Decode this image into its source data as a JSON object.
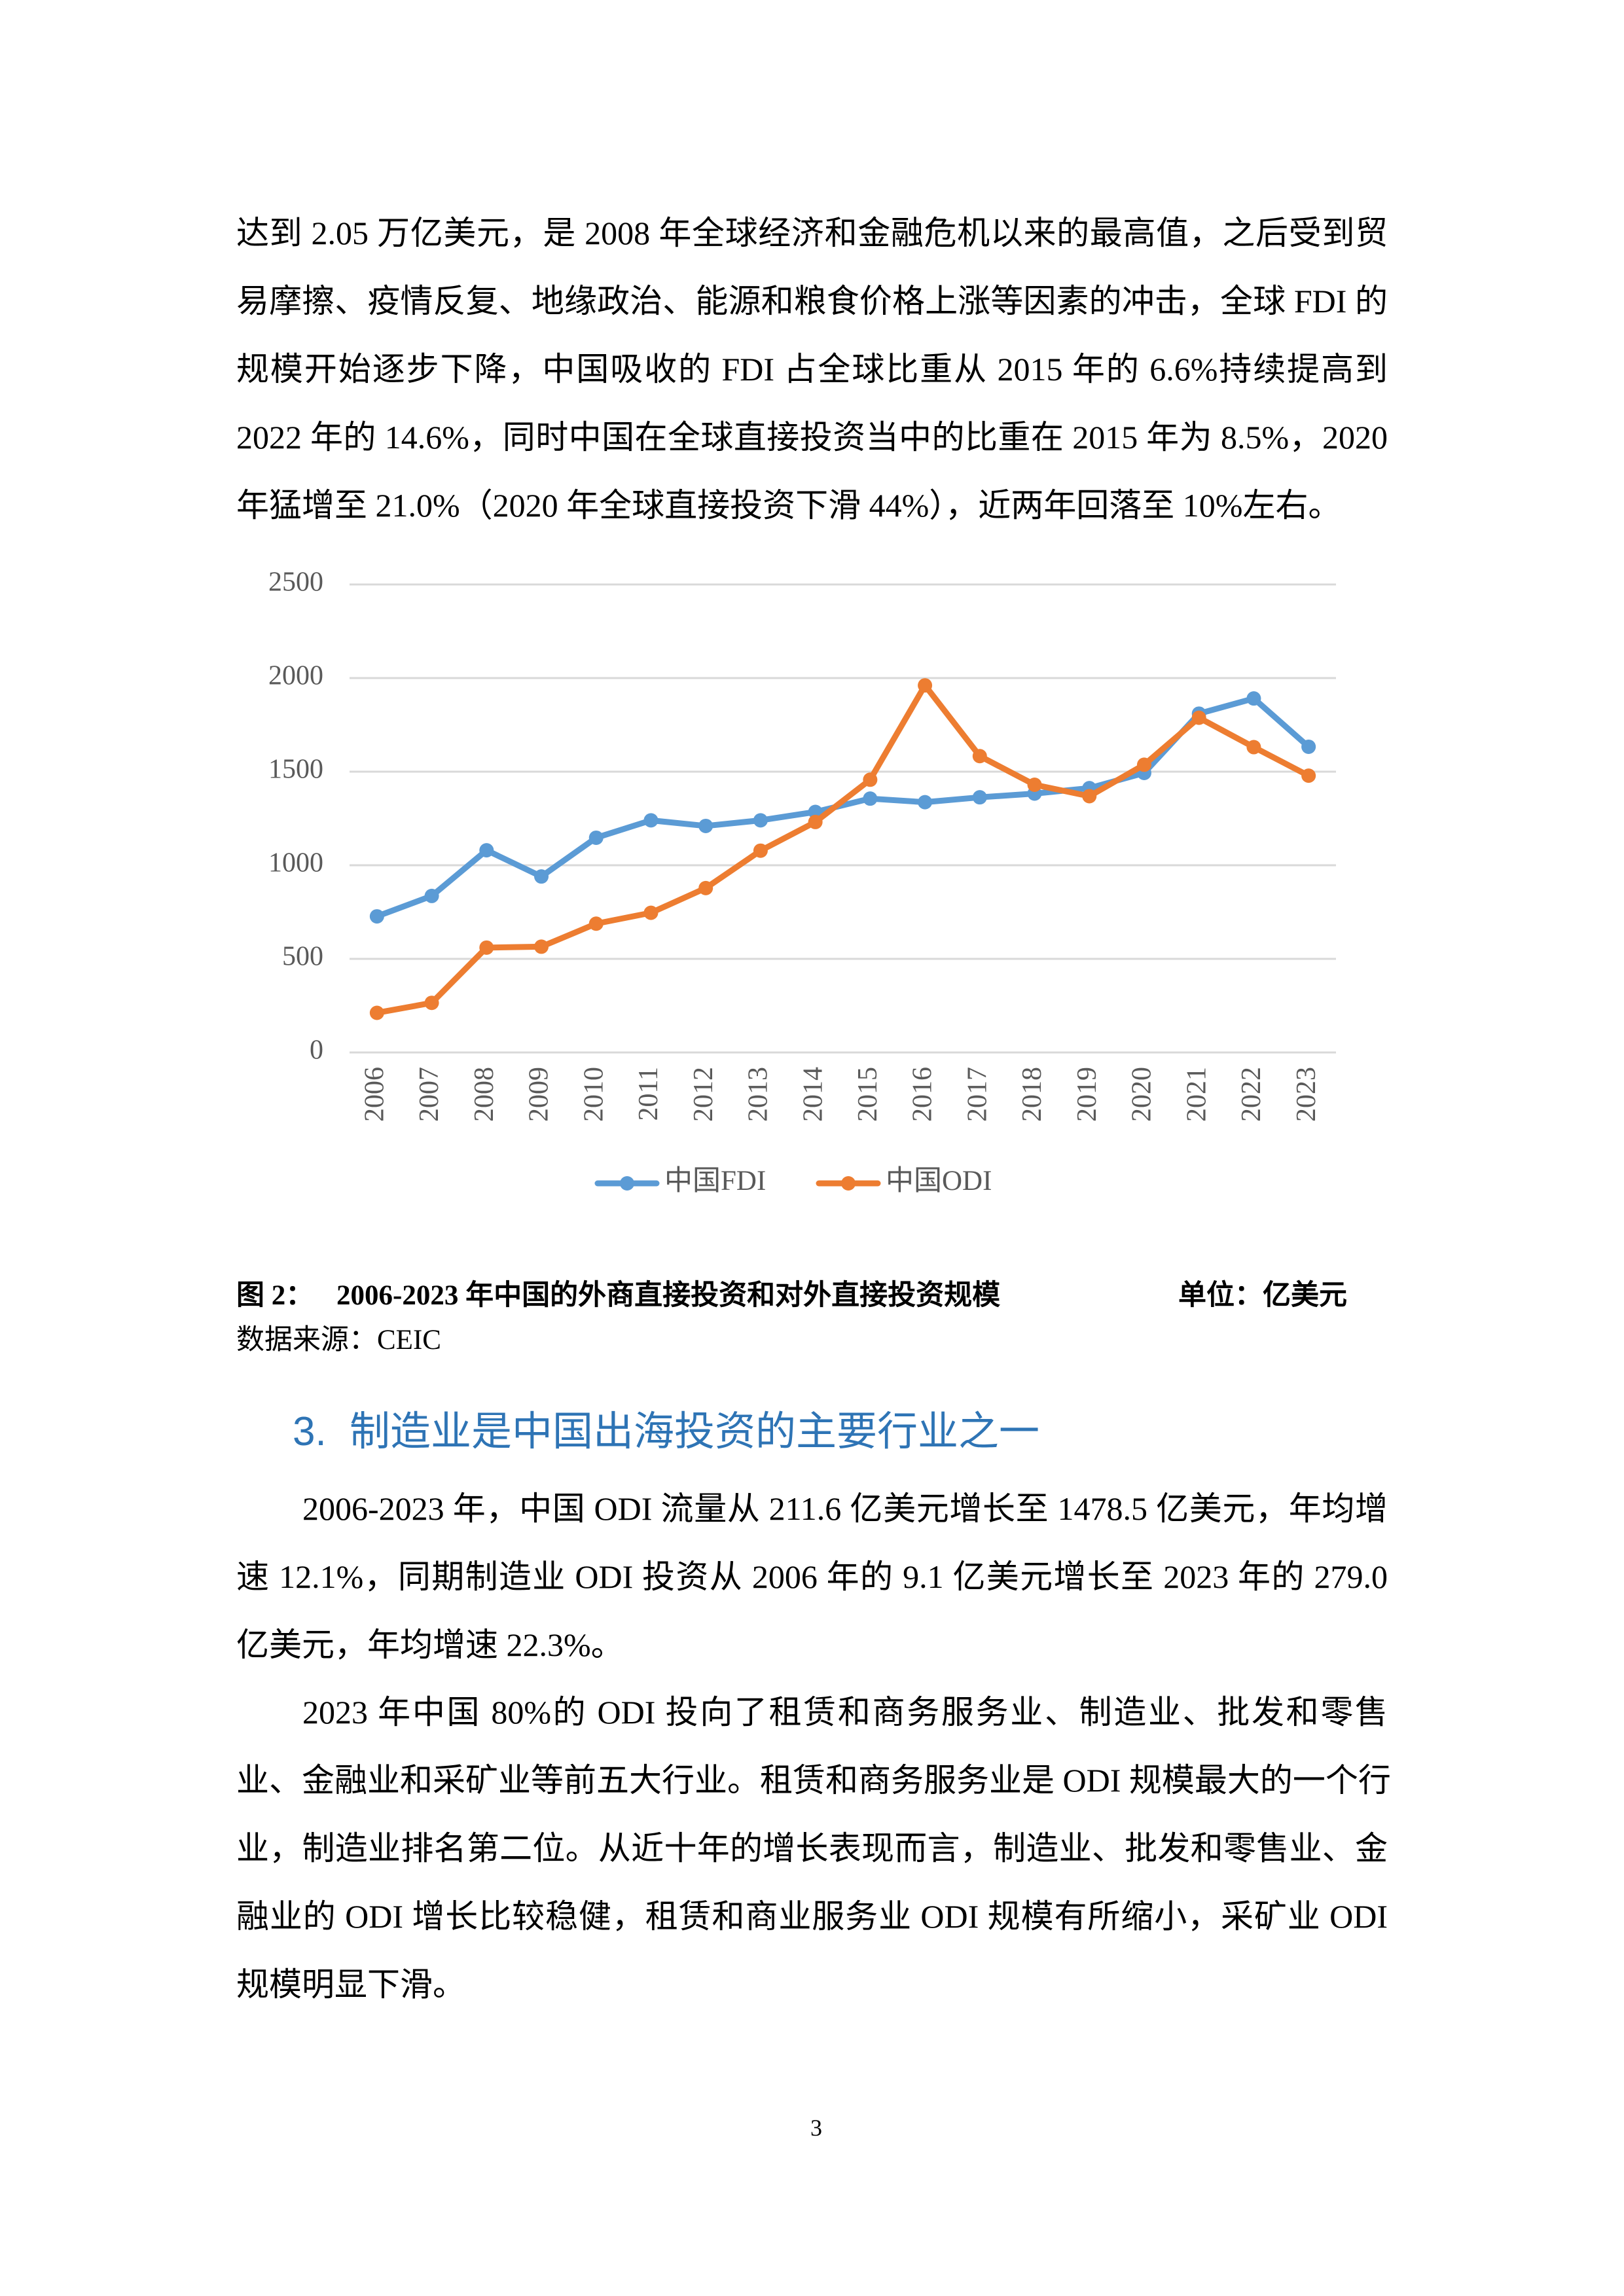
{
  "paragraphs_top": [
    {
      "lines": [
        "达到 2.05 万亿美元，是 2008 年全球经济和金融危机以来的最高值，之后受到贸",
        "易摩擦、疫情反复、地缘政治、能源和粮食价格上涨等因素的冲击，全球 FDI 的",
        "规模开始逐步下降，中国吸收的 FDI 占全球比重从 2015 年的 6.6%持续提高到",
        "2022 年的 14.6%，同时中国在全球直接投资当中的比重在 2015 年为 8.5%，2020",
        "年猛增至 21.0%（2020 年全球直接投资下滑 44%），近两年回落至 10%左右。"
      ]
    }
  ],
  "chart_data": {
    "type": "line",
    "categories": [
      "2006",
      "2007",
      "2008",
      "2009",
      "2010",
      "2011",
      "2012",
      "2013",
      "2014",
      "2015",
      "2016",
      "2017",
      "2018",
      "2019",
      "2020",
      "2021",
      "2022",
      "2023"
    ],
    "series": [
      {
        "name": "中国FDI",
        "color": "#5B9BD5",
        "values": [
          727,
          836,
          1080,
          940,
          1147,
          1240,
          1210,
          1240,
          1285,
          1356,
          1337,
          1363,
          1383,
          1412,
          1493,
          1810,
          1891,
          1633
        ]
      },
      {
        "name": "中国ODI",
        "color": "#ED7D31",
        "values": [
          211.6,
          265,
          560,
          565,
          688,
          746,
          878,
          1078,
          1231,
          1457,
          1961,
          1583,
          1430,
          1369,
          1537,
          1788,
          1631,
          1478.5
        ]
      }
    ],
    "ylim": [
      0,
      2500
    ],
    "yticks": [
      0,
      500,
      1000,
      1500,
      2000,
      2500
    ],
    "grid": true,
    "legend": "bottom"
  },
  "caption": {
    "label": "图 2：",
    "title": "2006-2023 年中国的外商直接投资和对外直接投资规模",
    "unit": "单位：亿美元",
    "source": "数据来源：CEIC"
  },
  "section": {
    "number": "3.",
    "title": "制造业是中国出海投资的主要行业之一"
  },
  "paragraphs": [
    {
      "lines": [
        "2006-2023 年，中国 ODI 流量从 211.6 亿美元增长至 1478.5 亿美元，年均增",
        "速 12.1%，同期制造业 ODI 投资从 2006 年的 9.1 亿美元增长至 2023 年的 279.0",
        "亿美元，年均增速 22.3%。"
      ]
    },
    {
      "lines": [
        "2023 年中国 80%的 ODI 投向了租赁和商务服务业、制造业、批发和零售",
        "业、金融业和采矿业等前五大行业。租赁和商务服务业是 ODI 规模最大的一个行",
        "业，制造业排名第二位。从近十年的增长表现而言，制造业、批发和零售业、金",
        "融业的 ODI 增长比较稳健，租赁和商业服务业 ODI 规模有所缩小，采矿业 ODI",
        "规模明显下滑。"
      ]
    }
  ],
  "page_number": "3"
}
